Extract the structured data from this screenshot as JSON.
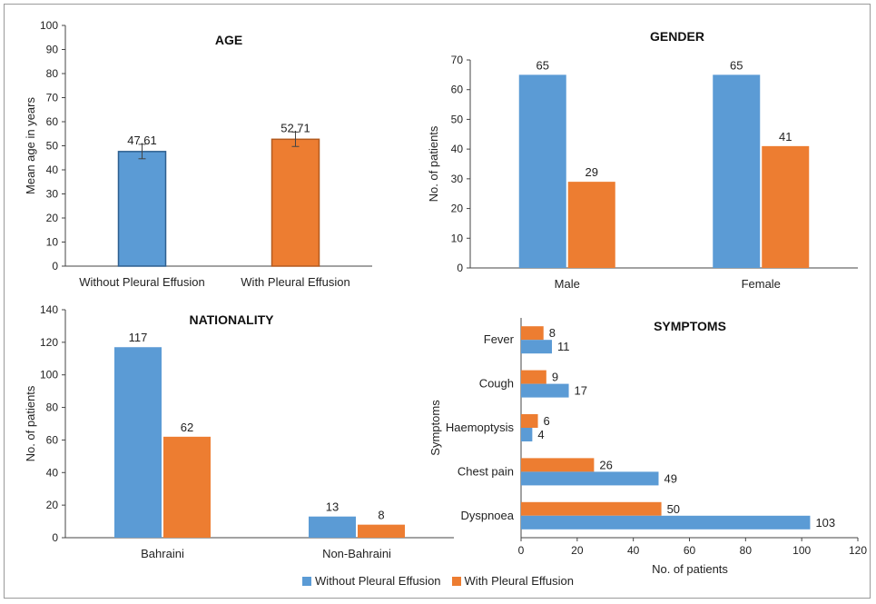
{
  "colors": {
    "without": "#5b9bd5",
    "with": "#ed7d31",
    "without_stroke": "#2e5f8f",
    "with_stroke": "#b35a1f"
  },
  "legend": {
    "without": "Without Pleural Effusion",
    "with": "With Pleural Effusion"
  },
  "chart_data": [
    {
      "type": "bar",
      "title": "AGE",
      "ylabel": "Mean age in years",
      "xlabel": "",
      "ylim": [
        0,
        100
      ],
      "yticks": [
        "0",
        "10",
        "20",
        "30",
        "40",
        "50",
        "60",
        "70",
        "80",
        "90",
        "100"
      ],
      "categories": [
        "Without Pleural Effusion",
        "With Pleural Effusion"
      ],
      "values": [
        47.61,
        52.71
      ],
      "value_labels": [
        "47.61",
        "52.71"
      ],
      "error": [
        3,
        3
      ]
    },
    {
      "type": "bar",
      "title": "GENDER",
      "ylabel": "No. of patients",
      "xlabel": "",
      "ylim": [
        0,
        70
      ],
      "yticks": [
        "0",
        "10",
        "20",
        "30",
        "40",
        "50",
        "60",
        "70"
      ],
      "categories": [
        "Male",
        "Female"
      ],
      "series": [
        {
          "name": "Without Pleural Effusion",
          "values": [
            65,
            65
          ]
        },
        {
          "name": "With Pleural Effusion",
          "values": [
            29,
            41
          ]
        }
      ]
    },
    {
      "type": "bar",
      "title": "NATIONALITY",
      "ylabel": "No. of patients",
      "xlabel": "",
      "ylim": [
        0,
        140
      ],
      "yticks": [
        "0",
        "20",
        "40",
        "60",
        "80",
        "100",
        "120",
        "140"
      ],
      "categories": [
        "Bahraini",
        "Non-Bahraini"
      ],
      "series": [
        {
          "name": "Without Pleural Effusion",
          "values": [
            117,
            13
          ]
        },
        {
          "name": "With Pleural Effusion",
          "values": [
            62,
            8
          ]
        }
      ]
    },
    {
      "type": "bar",
      "orientation": "horizontal",
      "title": "SYMPTOMS",
      "ylabel": "Symptoms",
      "xlabel": "No. of patients",
      "xlim": [
        0,
        120
      ],
      "xticks": [
        "0",
        "20",
        "40",
        "60",
        "80",
        "100",
        "120"
      ],
      "categories": [
        "Fever",
        "Cough",
        "Haemoptysis",
        "Chest pain",
        "Dyspnoea"
      ],
      "series": [
        {
          "name": "With Pleural Effusion",
          "values": [
            8,
            9,
            6,
            26,
            50
          ]
        },
        {
          "name": "Without Pleural Effusion",
          "values": [
            11,
            17,
            4,
            49,
            103
          ]
        }
      ]
    }
  ]
}
